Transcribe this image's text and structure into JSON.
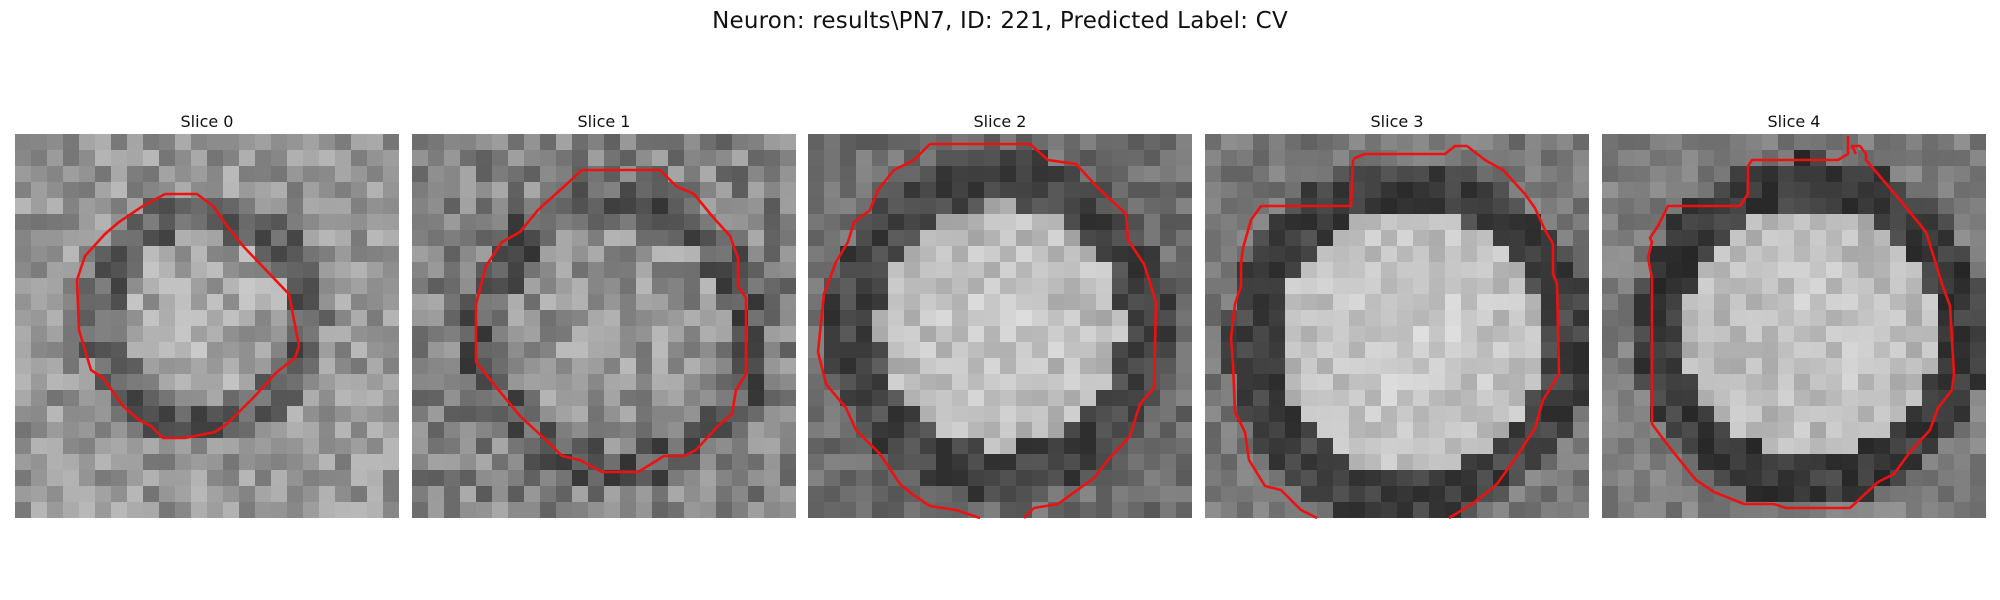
{
  "figure": {
    "title": "Neuron: results\\PN7, ID: 221, Predicted Label: CV",
    "contour_color": "#ee1111",
    "colormap": "gray"
  },
  "slices": [
    {
      "title": "Slice 0"
    },
    {
      "title": "Slice 1"
    },
    {
      "title": "Slice 2"
    },
    {
      "title": "Slice 3"
    },
    {
      "title": "Slice 4"
    }
  ]
}
